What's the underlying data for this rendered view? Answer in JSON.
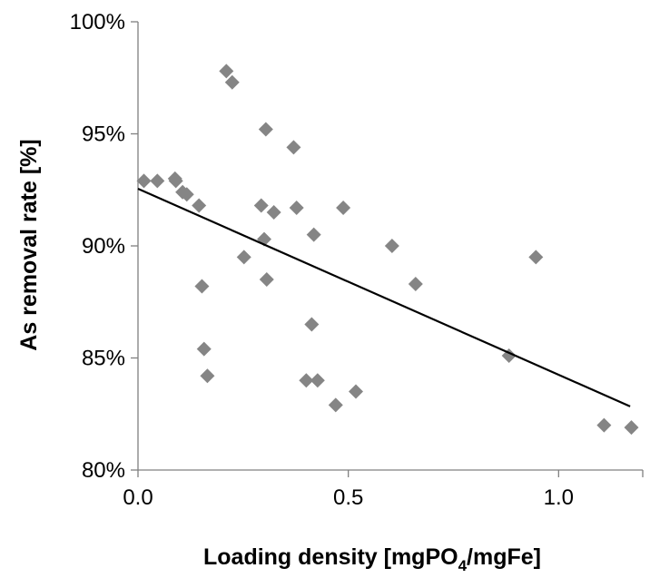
{
  "chart_data": {
    "type": "scatter",
    "xlabel_parts": {
      "before": "Loading density [mgPO",
      "sub": "4",
      "after": "/mgFe]"
    },
    "ylabel": "As removal rate [%]",
    "xlim": [
      0,
      1.2
    ],
    "ylim": [
      0.8,
      1.0
    ],
    "x_ticks": [
      0,
      0.5,
      1.0
    ],
    "x_tick_labels": [
      "0.0",
      "0.5",
      "1.0"
    ],
    "y_ticks": [
      0.8,
      0.85,
      0.9,
      0.95,
      1.0
    ],
    "y_tick_labels": [
      "80%",
      "85%",
      "90%",
      "95%",
      "100%"
    ],
    "grid": false,
    "legend": "none",
    "marker": "diamond",
    "colors": {
      "marker": "#858585",
      "trendline": "#000000",
      "axis": "#808080"
    },
    "series": [
      {
        "points": [
          {
            "x": 0.014,
            "y": 0.929
          },
          {
            "x": 0.046,
            "y": 0.929
          },
          {
            "x": 0.088,
            "y": 0.93
          },
          {
            "x": 0.09,
            "y": 0.929
          },
          {
            "x": 0.106,
            "y": 0.924
          },
          {
            "x": 0.116,
            "y": 0.923
          },
          {
            "x": 0.145,
            "y": 0.918
          },
          {
            "x": 0.152,
            "y": 0.882
          },
          {
            "x": 0.157,
            "y": 0.854
          },
          {
            "x": 0.165,
            "y": 0.842
          },
          {
            "x": 0.21,
            "y": 0.978
          },
          {
            "x": 0.224,
            "y": 0.973
          },
          {
            "x": 0.252,
            "y": 0.895
          },
          {
            "x": 0.293,
            "y": 0.918
          },
          {
            "x": 0.3,
            "y": 0.903
          },
          {
            "x": 0.304,
            "y": 0.952
          },
          {
            "x": 0.306,
            "y": 0.885
          },
          {
            "x": 0.323,
            "y": 0.915
          },
          {
            "x": 0.37,
            "y": 0.944
          },
          {
            "x": 0.377,
            "y": 0.917
          },
          {
            "x": 0.4,
            "y": 0.84
          },
          {
            "x": 0.413,
            "y": 0.865
          },
          {
            "x": 0.418,
            "y": 0.905
          },
          {
            "x": 0.427,
            "y": 0.84
          },
          {
            "x": 0.47,
            "y": 0.829
          },
          {
            "x": 0.488,
            "y": 0.917
          },
          {
            "x": 0.518,
            "y": 0.835
          },
          {
            "x": 0.604,
            "y": 0.9
          },
          {
            "x": 0.66,
            "y": 0.883
          },
          {
            "x": 0.882,
            "y": 0.851
          },
          {
            "x": 0.946,
            "y": 0.895
          },
          {
            "x": 1.108,
            "y": 0.82
          },
          {
            "x": 1.173,
            "y": 0.819
          }
        ]
      }
    ],
    "trendline": {
      "type": "linear",
      "x": [
        0.0,
        1.17
      ],
      "y": [
        0.9255,
        0.8284
      ]
    }
  }
}
